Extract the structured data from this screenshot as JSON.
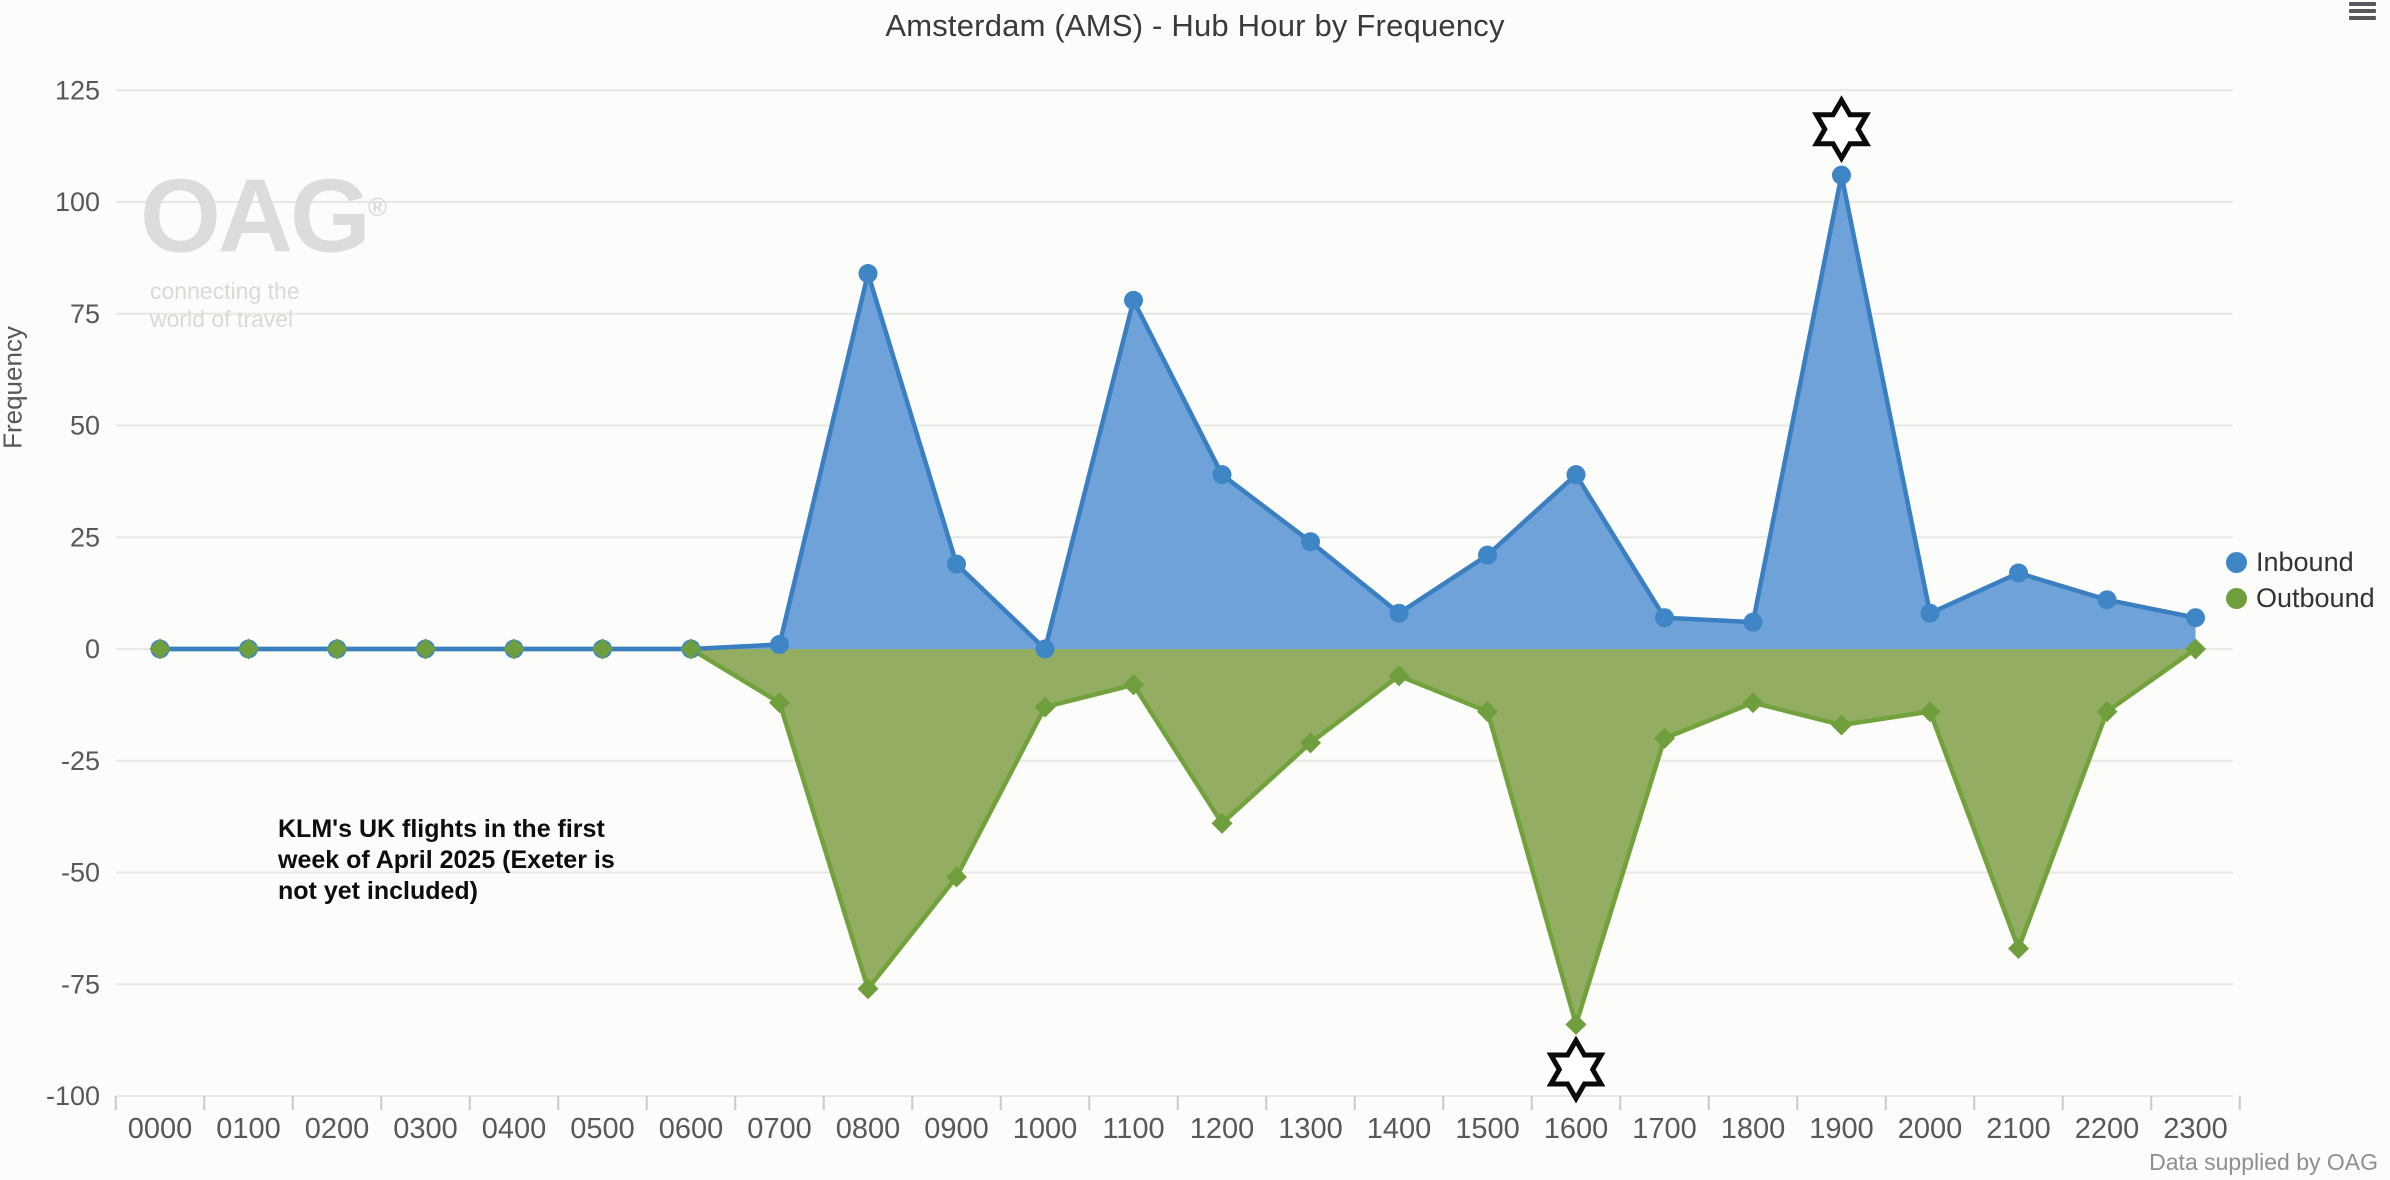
{
  "header": {
    "title": "Amsterdam (AMS) - Hub Hour by Frequency"
  },
  "watermark": {
    "logo": "OAG",
    "registered": "®",
    "tagline_line1": "connecting the",
    "tagline_line2": "world of travel"
  },
  "annotation": {
    "text": "KLM's UK flights in the first\nweek of April 2025 (Exeter is\nnot yet included)"
  },
  "credits": {
    "text": "Data supplied by OAG"
  },
  "menu_icon": {
    "name": "context-menu",
    "glyph": "≡"
  },
  "legend": {
    "position": "right-middle",
    "items": [
      {
        "label": "Inbound",
        "color": "#3f86c7"
      },
      {
        "label": "Outbound",
        "color": "#6f9f3c"
      }
    ]
  },
  "colors": {
    "inbound_line": "#3a7fc1",
    "inbound_fill": "#6fa2d8",
    "inbound_marker": "#3f86c7",
    "outbound_line": "#72a23c",
    "outbound_fill": "#93ad62",
    "outbound_marker": "#6f9f3c",
    "grid": "#e7e7e4",
    "tick": "#c9c9c7",
    "axis_text": "#58585a",
    "title_text": "#3a3a3a",
    "legend_text": "#333333",
    "annotation_text": "#0d0d0d",
    "watermark": "#dcdcdc",
    "credits_text": "#8f8f8c",
    "star_stroke": "#0a0a0a",
    "background": "#fcfcfa"
  },
  "chart_data": {
    "type": "area",
    "title": "Amsterdam (AMS) - Hub Hour by Frequency",
    "xlabel": "",
    "ylabel": "Frequency",
    "ylim": [
      -100,
      125
    ],
    "yticks": [
      125,
      100,
      75,
      50,
      25,
      0,
      -25,
      -50,
      -75,
      -100
    ],
    "grid": true,
    "legend_position": "right",
    "categories": [
      "0000",
      "0100",
      "0200",
      "0300",
      "0400",
      "0500",
      "0600",
      "0700",
      "0800",
      "0900",
      "1000",
      "1100",
      "1200",
      "1300",
      "1400",
      "1500",
      "1600",
      "1700",
      "1800",
      "1900",
      "2000",
      "2100",
      "2200",
      "2300"
    ],
    "series": [
      {
        "name": "Inbound",
        "marker": "circle",
        "values": [
          0,
          0,
          0,
          0,
          0,
          0,
          0,
          1,
          84,
          19,
          0,
          78,
          39,
          24,
          8,
          21,
          39,
          7,
          6,
          106,
          8,
          17,
          11,
          7
        ]
      },
      {
        "name": "Outbound",
        "marker": "diamond",
        "values": [
          0,
          0,
          0,
          0,
          0,
          0,
          0,
          -12,
          -76,
          -51,
          -13,
          -8,
          -39,
          -21,
          -6,
          -14,
          -84,
          -20,
          -12,
          -17,
          -14,
          -67,
          -14,
          0
        ]
      }
    ],
    "star_annotations": [
      {
        "series": "Inbound",
        "category": "1900",
        "placement": "above",
        "shape": "six-pointed-star"
      },
      {
        "series": "Outbound",
        "category": "1600",
        "placement": "below",
        "shape": "six-pointed-star"
      }
    ]
  }
}
